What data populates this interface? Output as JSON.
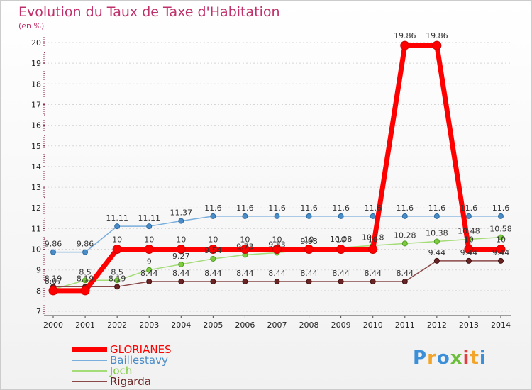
{
  "chart_data": {
    "type": "line",
    "title": "Evolution du Taux de Taxe d'Habitation",
    "ylabel": "(en %)",
    "xlabel": "",
    "ylim": [
      7,
      20
    ],
    "yticks": [
      7,
      8,
      9,
      10,
      11,
      12,
      13,
      14,
      15,
      16,
      17,
      18,
      19,
      20
    ],
    "x": [
      "2000",
      "2001",
      "2002",
      "2003",
      "2004",
      "2005",
      "2006",
      "2007",
      "2008",
      "2009",
      "2010",
      "2011",
      "2012",
      "2013",
      "2014"
    ],
    "series": [
      {
        "name": "GLORIANES",
        "color": "#ff0000",
        "values": [
          8.0,
          8.0,
          10,
          10,
          10,
          10,
          10,
          10,
          10,
          10,
          10,
          19.86,
          19.86,
          10,
          10
        ],
        "labels": [
          "",
          "",
          "10",
          "10",
          "10",
          "10",
          "10",
          "10",
          "10",
          "10",
          "10",
          "19.86",
          "19.86",
          "10",
          "10"
        ]
      },
      {
        "name": "Baillestavy",
        "color": "#5b9bd5",
        "values": [
          9.86,
          9.86,
          11.11,
          11.11,
          11.37,
          11.6,
          11.6,
          11.6,
          11.6,
          11.6,
          11.6,
          11.6,
          11.6,
          11.6,
          11.6
        ],
        "labels": [
          "9.86",
          "9.86",
          "11.11",
          "11.11",
          "11.37",
          "11.6",
          "11.6",
          "11.6",
          "11.6",
          "11.6",
          "11.6",
          "11.6",
          "11.6",
          "11.6",
          "11.6"
        ]
      },
      {
        "name": "Joch",
        "color": "#8fd14f",
        "values": [
          8.07,
          8.5,
          8.5,
          9,
          9.27,
          9.54,
          9.73,
          9.83,
          9.98,
          10.08,
          10.18,
          10.28,
          10.38,
          10.48,
          10.58
        ],
        "labels": [
          "8.07",
          "8.5",
          "8.5",
          "9",
          "9.27",
          "9.54",
          "9.73",
          "9.83",
          "9.98",
          "10.08",
          "10.18",
          "10.28",
          "10.38",
          "10.48",
          "10.58"
        ]
      },
      {
        "name": "Rigarda",
        "color": "#7a2f2f",
        "values": [
          8.19,
          8.19,
          8.19,
          8.44,
          8.44,
          8.44,
          8.44,
          8.44,
          8.44,
          8.44,
          8.44,
          8.44,
          9.44,
          9.44,
          9.44
        ],
        "labels": [
          "8.19",
          "8.19",
          "8.19",
          "8.44",
          "8.44",
          "8.44",
          "8.44",
          "8.44",
          "8.44",
          "8.44",
          "8.44",
          "8.44",
          "9.44",
          "9.44",
          "9.44"
        ]
      }
    ]
  },
  "logo": {
    "letters": [
      "P",
      "r",
      "o",
      "x",
      "i",
      "t",
      "i"
    ],
    "colors": [
      "#3b8fd8",
      "#f2a52a",
      "#3b8fd8",
      "#6bbf3a",
      "#e23c3c",
      "#f2a52a",
      "#3b8fd8"
    ]
  }
}
